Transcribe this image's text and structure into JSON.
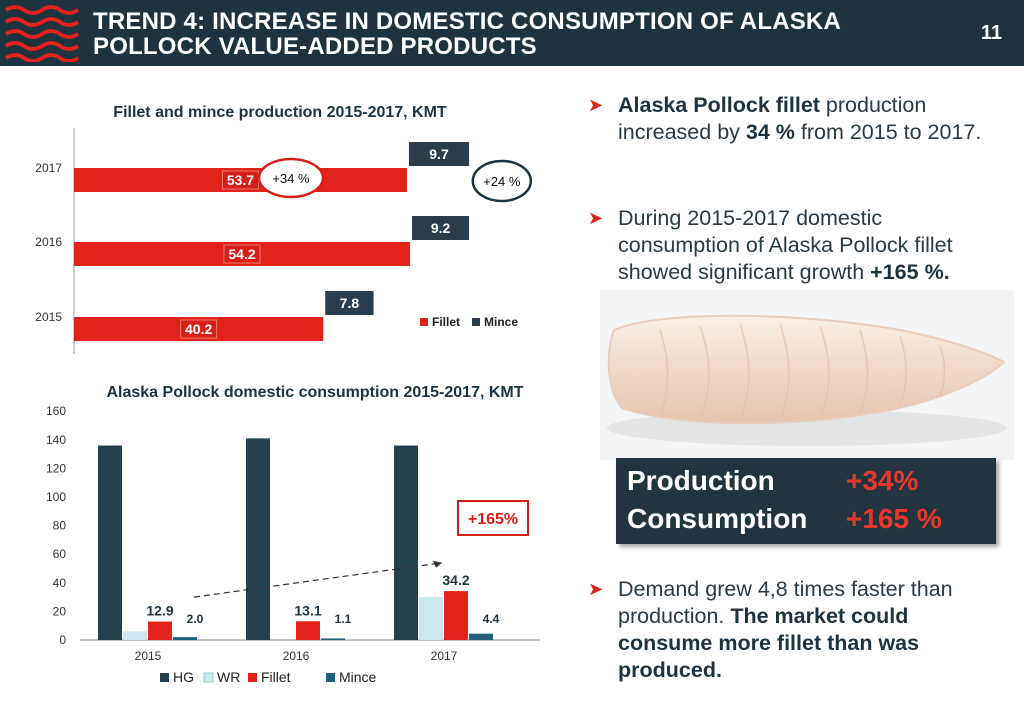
{
  "header": {
    "title_line1": "TREND 4: INCREASE IN DOMESTIC CONSUMPTION OF ALASKA",
    "title_line2": "POLLOCK VALUE-ADDED PRODUCTS",
    "page_number": "11"
  },
  "colors": {
    "header_bg": "#1d3340",
    "fillet_red": "#e2231a",
    "mince_dark": "#2b3d4a",
    "hg_dark": "#22414c",
    "wr_light": "#cde7ee",
    "mince_teal": "#1f5f7a",
    "accent_red": "#e8382c"
  },
  "chart_data": [
    {
      "type": "bar",
      "orientation": "horizontal",
      "stacked": true,
      "title": "Fillet and mince production 2015-2017, KMT",
      "categories": [
        "2017",
        "2016",
        "2015"
      ],
      "series": [
        {
          "name": "Fillet",
          "values": [
            53.7,
            54.2,
            40.2
          ]
        },
        {
          "name": "Mince",
          "values": [
            9.7,
            9.2,
            7.8
          ]
        }
      ],
      "annotations": [
        "+34 %",
        "+24 %"
      ],
      "legend": [
        "Fillet",
        "Mince"
      ],
      "legend_position": "right"
    },
    {
      "type": "bar",
      "title": "Alaska Pollock domestic consumption 2015-2017, KMT",
      "categories": [
        "2015",
        "2016",
        "2017"
      ],
      "yticks": [
        "160",
        "140",
        "120",
        "100",
        "80",
        "60",
        "40",
        "20",
        "0"
      ],
      "ylim": [
        0,
        160
      ],
      "series": [
        {
          "name": "HG",
          "values": [
            136,
            141,
            136
          ]
        },
        {
          "name": "WR",
          "values": [
            6,
            0,
            30
          ]
        },
        {
          "name": "Fillet",
          "values": [
            12.9,
            13.1,
            34.2
          ]
        },
        {
          "name": "Mince",
          "values": [
            2.0,
            1.1,
            4.4
          ]
        }
      ],
      "data_labels": {
        "Fillet": [
          "12.9",
          "13.1",
          "34.2"
        ],
        "Mince": [
          "2.0",
          "1.1",
          "4.4"
        ]
      },
      "annotation": "+165%",
      "legend": [
        "HG",
        "WR",
        "Fillet",
        "Mince"
      ],
      "legend_position": "bottom"
    }
  ],
  "bullets": [
    {
      "parts": [
        {
          "t": "Alaska Pollock fillet",
          "b": true
        },
        {
          "t": " production increased by ",
          "b": false
        },
        {
          "t": "34 %",
          "b": true
        },
        {
          "t": " from 2015 to 2017.",
          "b": false
        }
      ]
    },
    {
      "parts": [
        {
          "t": "During  2015-2017 domestic consumption of Alaska Pollock fillet showed significant  growth ",
          "b": false
        },
        {
          "t": "+165 %.",
          "b": true
        }
      ]
    },
    {
      "parts": [
        {
          "t": "Demand grew 4,8 times faster than production. ",
          "b": false
        },
        {
          "t": "The market could consume more fillet than was produced.",
          "b": true
        }
      ]
    }
  ],
  "summary": {
    "production_label": "Production",
    "production_value": "+34%",
    "consumption_label": "Consumption",
    "consumption_value": "+165 %"
  }
}
